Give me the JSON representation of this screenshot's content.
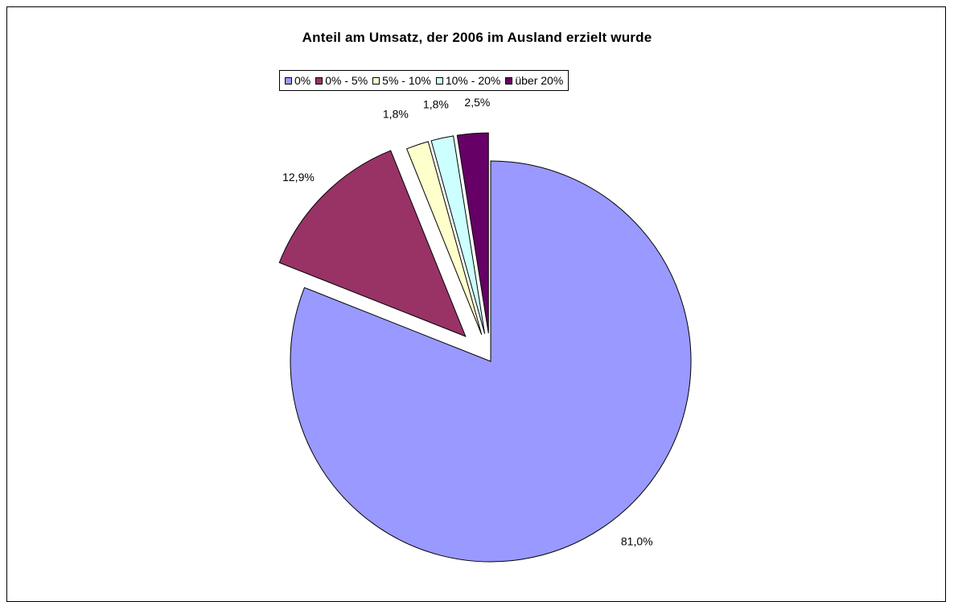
{
  "chart_data": {
    "type": "pie",
    "title": "Anteil am Umsatz, der 2006 im Ausland erzielt wurde",
    "legend_position": "top",
    "categories": [
      "0%",
      "0% - 5%",
      "5% - 10%",
      "10% - 20%",
      "über 20%"
    ],
    "values": [
      81.0,
      12.9,
      1.8,
      1.8,
      2.5
    ],
    "data_labels": [
      "81,0%",
      "12,9%",
      "1,8%",
      "1,8%",
      "2,5%"
    ],
    "colors": [
      "#9999FF",
      "#993366",
      "#FFFFCC",
      "#CCFFFF",
      "#660066"
    ],
    "exploded": [
      false,
      true,
      true,
      true,
      true
    ]
  }
}
